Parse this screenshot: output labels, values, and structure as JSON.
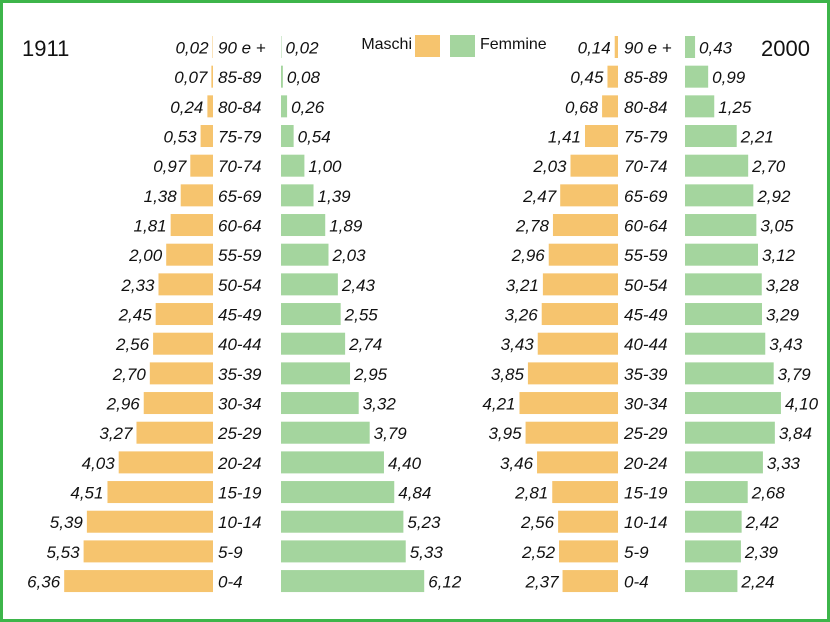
{
  "chart_data": [
    {
      "type": "pyramid",
      "title": "1911",
      "categories": [
        "90 e +",
        "85-89",
        "80-84",
        "75-79",
        "70-74",
        "65-69",
        "60-64",
        "55-59",
        "50-54",
        "45-49",
        "40-44",
        "35-39",
        "30-34",
        "25-29",
        "20-24",
        "15-19",
        "10-14",
        "5-9",
        "0-4"
      ],
      "series": [
        {
          "name": "Maschi",
          "color": "#f6c46e",
          "values": [
            0.02,
            0.07,
            0.24,
            0.53,
            0.97,
            1.38,
            1.81,
            2.0,
            2.33,
            2.45,
            2.56,
            2.7,
            2.96,
            3.27,
            4.03,
            4.51,
            5.39,
            5.53,
            6.36
          ],
          "value_labels": [
            "0,02",
            "0,07",
            "0,24",
            "0,53",
            "0,97",
            "1,38",
            "1,81",
            "2,00",
            "2,33",
            "2,45",
            "2,56",
            "2,70",
            "2,96",
            "3,27",
            "4,03",
            "4,51",
            "5,39",
            "5,53",
            "6,36"
          ]
        },
        {
          "name": "Femmine",
          "color": "#a4d59e",
          "values": [
            0.02,
            0.08,
            0.26,
            0.54,
            1.0,
            1.39,
            1.89,
            2.03,
            2.43,
            2.55,
            2.74,
            2.95,
            3.32,
            3.79,
            4.4,
            4.84,
            5.23,
            5.33,
            6.12
          ],
          "value_labels": [
            "0,02",
            "0,08",
            "0,26",
            "0,54",
            "1,00",
            "1,39",
            "1,89",
            "2,03",
            "2,43",
            "2,55",
            "2,74",
            "2,95",
            "3,32",
            "3,79",
            "4,40",
            "4,84",
            "5,23",
            "5,33",
            "6,12"
          ]
        }
      ]
    },
    {
      "type": "pyramid",
      "title": "2000",
      "categories": [
        "90 e +",
        "85-89",
        "80-84",
        "75-79",
        "70-74",
        "65-69",
        "60-64",
        "55-59",
        "50-54",
        "45-49",
        "40-44",
        "35-39",
        "30-34",
        "25-29",
        "20-24",
        "15-19",
        "10-14",
        "5-9",
        "0-4"
      ],
      "series": [
        {
          "name": "Maschi",
          "color": "#f6c46e",
          "values": [
            0.14,
            0.45,
            0.68,
            1.41,
            2.03,
            2.47,
            2.78,
            2.96,
            3.21,
            3.26,
            3.43,
            3.85,
            4.21,
            3.95,
            3.46,
            2.81,
            2.56,
            2.52,
            2.37
          ],
          "value_labels": [
            "0,14",
            "0,45",
            "0,68",
            "1,41",
            "2,03",
            "2,47",
            "2,78",
            "2,96",
            "3,21",
            "3,26",
            "3,43",
            "3,85",
            "4,21",
            "3,95",
            "3,46",
            "2,81",
            "2,56",
            "2,52",
            "2,37"
          ]
        },
        {
          "name": "Femmine",
          "color": "#a4d59e",
          "values": [
            0.43,
            0.99,
            1.25,
            2.21,
            2.7,
            2.92,
            3.05,
            3.12,
            3.28,
            3.29,
            3.43,
            3.79,
            4.1,
            3.84,
            3.33,
            2.68,
            2.42,
            2.39,
            2.24
          ],
          "value_labels": [
            "0,43",
            "0,99",
            "1,25",
            "2,21",
            "2,70",
            "2,92",
            "3,05",
            "3,12",
            "3,28",
            "3,29",
            "3,43",
            "3,79",
            "4,10",
            "3,84",
            "3,33",
            "2,68",
            "2,42",
            "2,39",
            "2,24"
          ]
        }
      ]
    }
  ]
}
